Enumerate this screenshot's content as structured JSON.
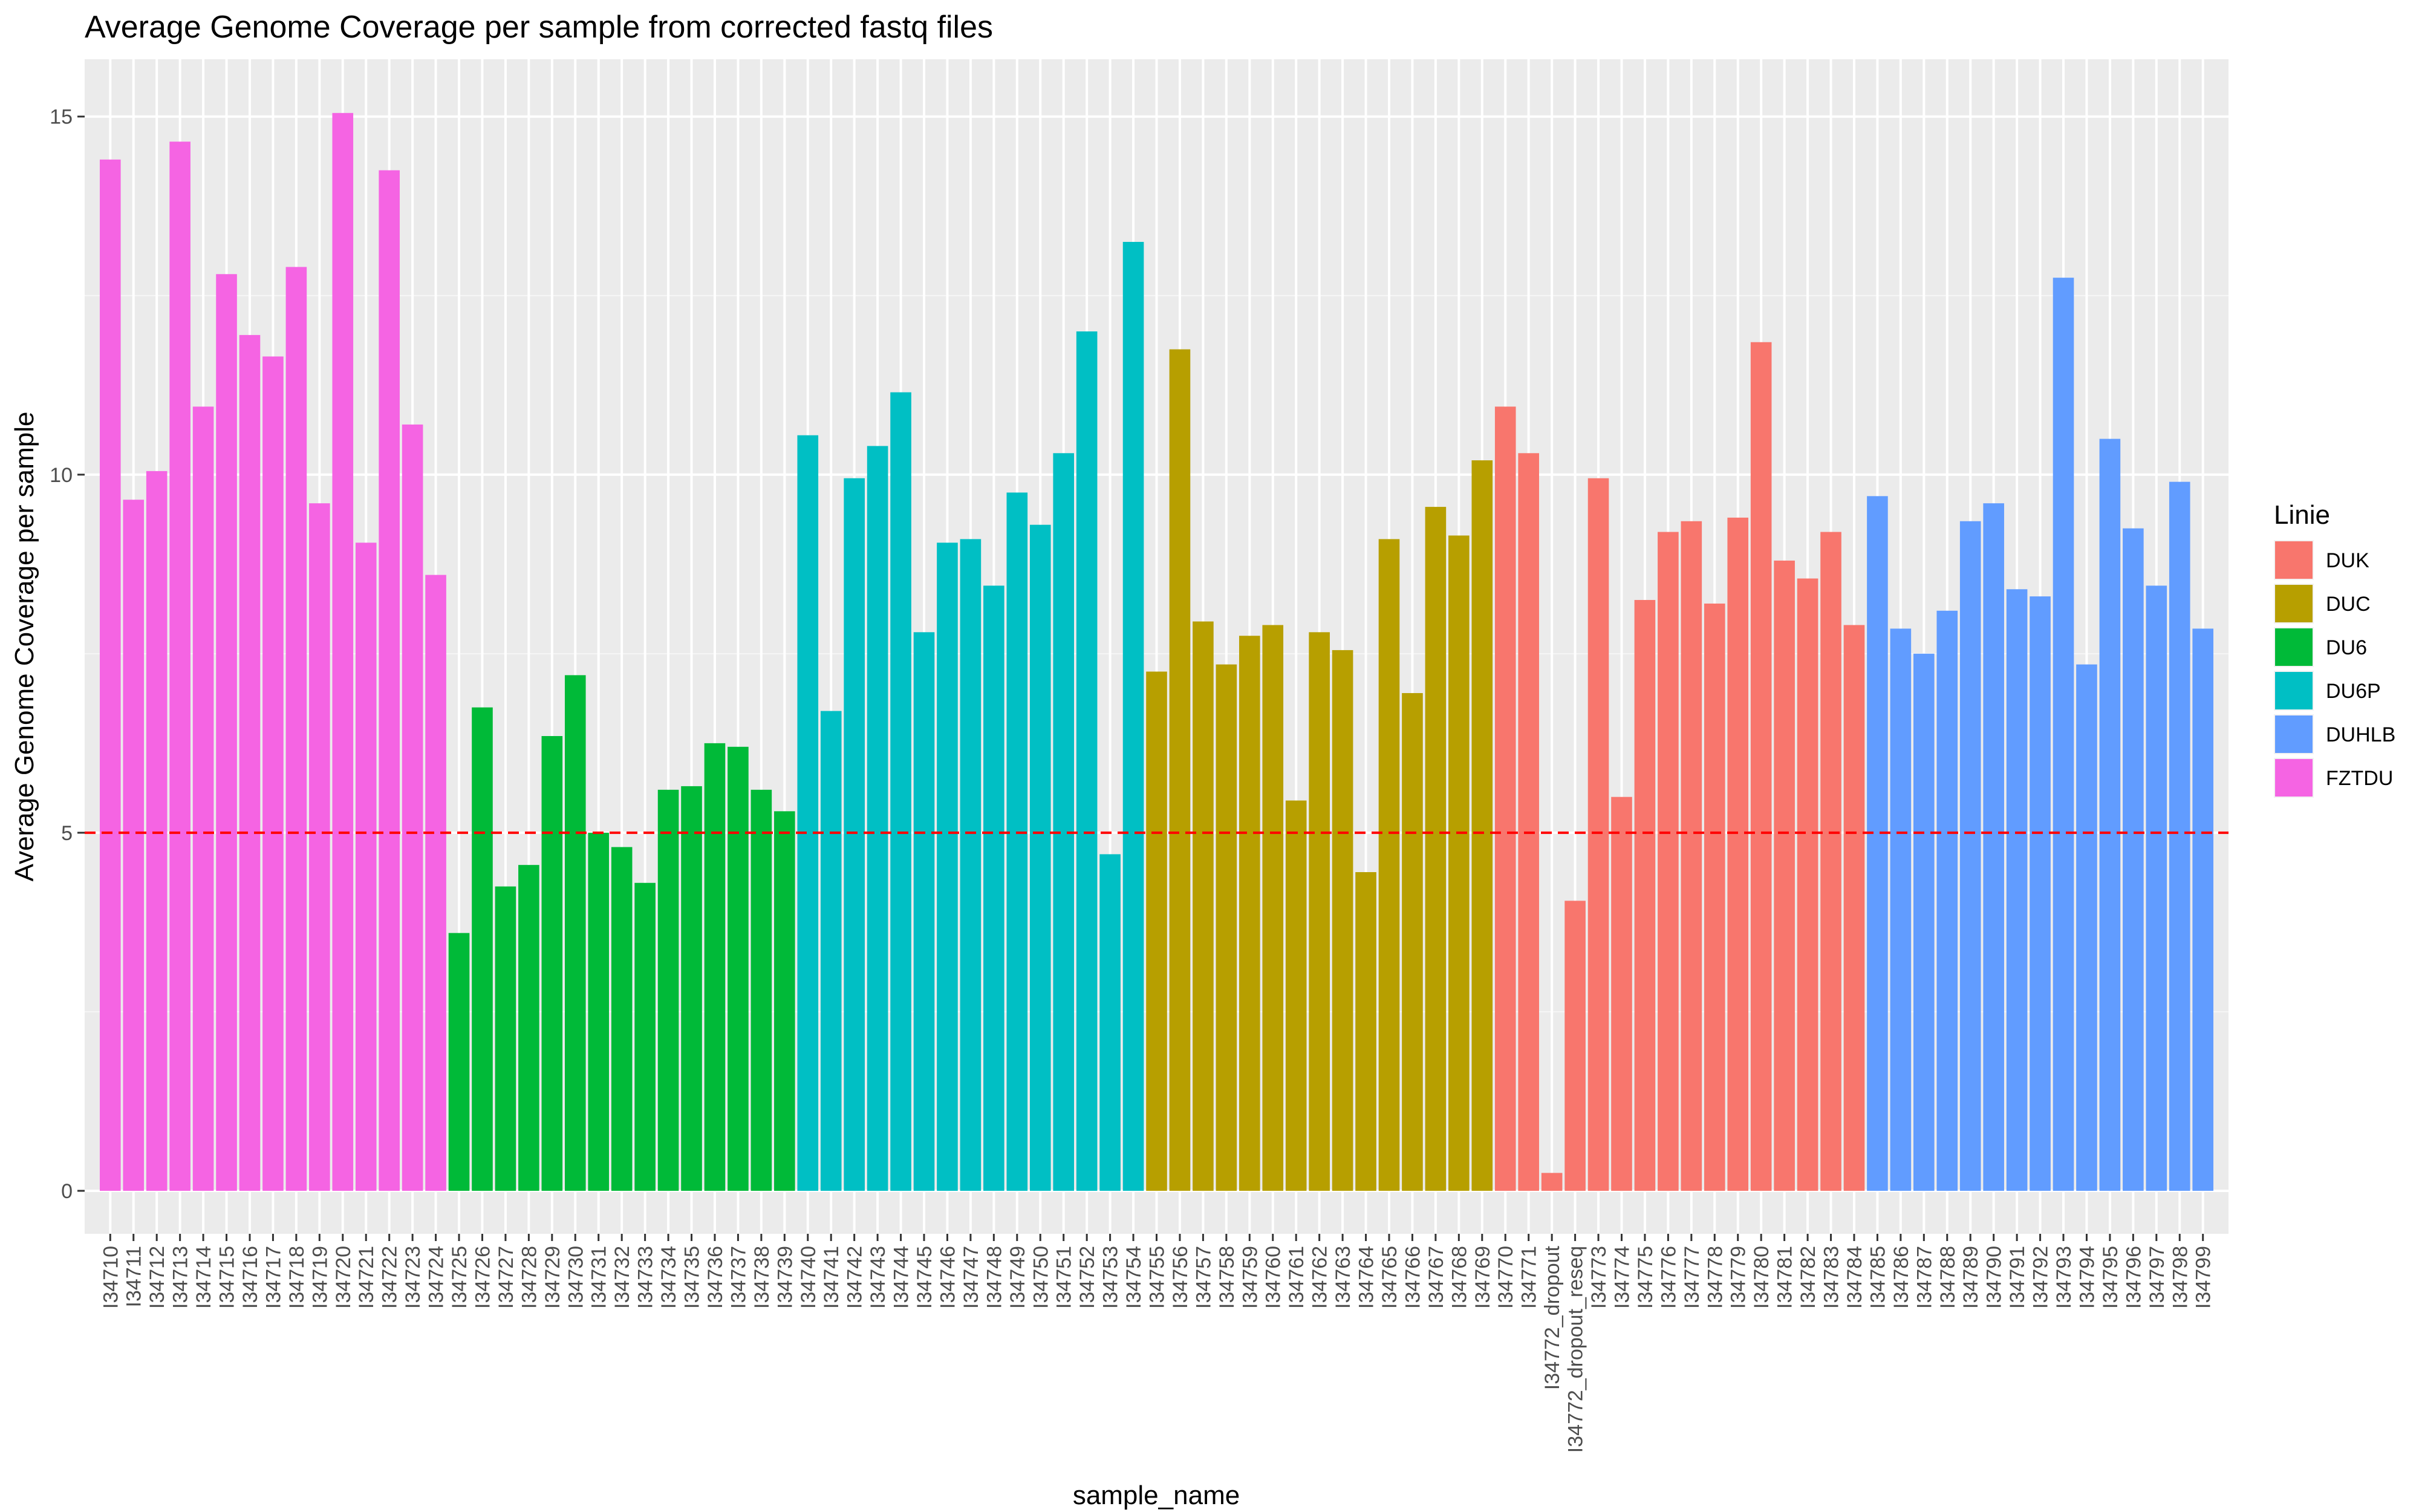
{
  "chart_data": {
    "type": "bar",
    "title": "Average Genome Coverage per sample from corrected fastq files",
    "xlabel": "sample_name",
    "ylabel": "Average Genome Coverage per sample",
    "ylim": [
      -0.6,
      15.8
    ],
    "yticks": [
      0,
      5,
      10,
      15
    ],
    "grid": true,
    "hline": {
      "value": 5,
      "color": "#ff0000",
      "style": "dashed"
    },
    "legend": {
      "title": "Linie",
      "position": "right",
      "items": [
        {
          "name": "DUK",
          "color": "#F8766D"
        },
        {
          "name": "DUC",
          "color": "#B79F00"
        },
        {
          "name": "DU6",
          "color": "#00BA38"
        },
        {
          "name": "DU6P",
          "color": "#00BFC4"
        },
        {
          "name": "DUHLB",
          "color": "#619CFF"
        },
        {
          "name": "FZTDU",
          "color": "#F564E3"
        }
      ]
    },
    "bars": [
      {
        "label": "I34710",
        "value": 14.4,
        "group": "FZTDU"
      },
      {
        "label": "I34711",
        "value": 9.65,
        "group": "FZTDU"
      },
      {
        "label": "I34712",
        "value": 10.05,
        "group": "FZTDU"
      },
      {
        "label": "I34713",
        "value": 14.65,
        "group": "FZTDU"
      },
      {
        "label": "I34714",
        "value": 10.95,
        "group": "FZTDU"
      },
      {
        "label": "I34715",
        "value": 12.8,
        "group": "FZTDU"
      },
      {
        "label": "I34716",
        "value": 11.95,
        "group": "FZTDU"
      },
      {
        "label": "I34717",
        "value": 11.65,
        "group": "FZTDU"
      },
      {
        "label": "I34718",
        "value": 12.9,
        "group": "FZTDU"
      },
      {
        "label": "I34719",
        "value": 9.6,
        "group": "FZTDU"
      },
      {
        "label": "I34720",
        "value": 15.05,
        "group": "FZTDU"
      },
      {
        "label": "I34721",
        "value": 9.05,
        "group": "FZTDU"
      },
      {
        "label": "I34722",
        "value": 14.25,
        "group": "FZTDU"
      },
      {
        "label": "I34723",
        "value": 10.7,
        "group": "FZTDU"
      },
      {
        "label": "I34724",
        "value": 8.6,
        "group": "FZTDU"
      },
      {
        "label": "I34725",
        "value": 3.6,
        "group": "DU6"
      },
      {
        "label": "I34726",
        "value": 6.75,
        "group": "DU6"
      },
      {
        "label": "I34727",
        "value": 4.25,
        "group": "DU6"
      },
      {
        "label": "I34728",
        "value": 4.55,
        "group": "DU6"
      },
      {
        "label": "I34729",
        "value": 6.35,
        "group": "DU6"
      },
      {
        "label": "I34730",
        "value": 7.2,
        "group": "DU6"
      },
      {
        "label": "I34731",
        "value": 5.0,
        "group": "DU6"
      },
      {
        "label": "I34732",
        "value": 4.8,
        "group": "DU6"
      },
      {
        "label": "I34733",
        "value": 4.3,
        "group": "DU6"
      },
      {
        "label": "I34734",
        "value": 5.6,
        "group": "DU6"
      },
      {
        "label": "I34735",
        "value": 5.65,
        "group": "DU6"
      },
      {
        "label": "I34736",
        "value": 6.25,
        "group": "DU6"
      },
      {
        "label": "I34737",
        "value": 6.2,
        "group": "DU6"
      },
      {
        "label": "I34738",
        "value": 5.6,
        "group": "DU6"
      },
      {
        "label": "I34739",
        "value": 5.3,
        "group": "DU6"
      },
      {
        "label": "I34740",
        "value": 10.55,
        "group": "DU6P"
      },
      {
        "label": "I34741",
        "value": 6.7,
        "group": "DU6P"
      },
      {
        "label": "I34742",
        "value": 9.95,
        "group": "DU6P"
      },
      {
        "label": "I34743",
        "value": 10.4,
        "group": "DU6P"
      },
      {
        "label": "I34744",
        "value": 11.15,
        "group": "DU6P"
      },
      {
        "label": "I34745",
        "value": 7.8,
        "group": "DU6P"
      },
      {
        "label": "I34746",
        "value": 9.05,
        "group": "DU6P"
      },
      {
        "label": "I34747",
        "value": 9.1,
        "group": "DU6P"
      },
      {
        "label": "I34748",
        "value": 8.45,
        "group": "DU6P"
      },
      {
        "label": "I34749",
        "value": 9.75,
        "group": "DU6P"
      },
      {
        "label": "I34750",
        "value": 9.3,
        "group": "DU6P"
      },
      {
        "label": "I34751",
        "value": 10.3,
        "group": "DU6P"
      },
      {
        "label": "I34752",
        "value": 12.0,
        "group": "DU6P"
      },
      {
        "label": "I34753",
        "value": 4.7,
        "group": "DU6P"
      },
      {
        "label": "I34754",
        "value": 13.25,
        "group": "DU6P"
      },
      {
        "label": "I34755",
        "value": 7.25,
        "group": "DUC"
      },
      {
        "label": "I34756",
        "value": 11.75,
        "group": "DUC"
      },
      {
        "label": "I34757",
        "value": 7.95,
        "group": "DUC"
      },
      {
        "label": "I34758",
        "value": 7.35,
        "group": "DUC"
      },
      {
        "label": "I34759",
        "value": 7.75,
        "group": "DUC"
      },
      {
        "label": "I34760",
        "value": 7.9,
        "group": "DUC"
      },
      {
        "label": "I34761",
        "value": 5.45,
        "group": "DUC"
      },
      {
        "label": "I34762",
        "value": 7.8,
        "group": "DUC"
      },
      {
        "label": "I34763",
        "value": 7.55,
        "group": "DUC"
      },
      {
        "label": "I34764",
        "value": 4.45,
        "group": "DUC"
      },
      {
        "label": "I34765",
        "value": 9.1,
        "group": "DUC"
      },
      {
        "label": "I34766",
        "value": 6.95,
        "group": "DUC"
      },
      {
        "label": "I34767",
        "value": 9.55,
        "group": "DUC"
      },
      {
        "label": "I34768",
        "value": 9.15,
        "group": "DUC"
      },
      {
        "label": "I34769",
        "value": 10.2,
        "group": "DUC"
      },
      {
        "label": "I34770",
        "value": 10.95,
        "group": "DUK"
      },
      {
        "label": "I34771",
        "value": 10.3,
        "group": "DUK"
      },
      {
        "label": "I34772_dropout",
        "value": 0.25,
        "group": "DUK"
      },
      {
        "label": "I34772_dropout_reseq",
        "value": 4.05,
        "group": "DUK"
      },
      {
        "label": "I34773",
        "value": 9.95,
        "group": "DUK"
      },
      {
        "label": "I34774",
        "value": 5.5,
        "group": "DUK"
      },
      {
        "label": "I34775",
        "value": 8.25,
        "group": "DUK"
      },
      {
        "label": "I34776",
        "value": 9.2,
        "group": "DUK"
      },
      {
        "label": "I34777",
        "value": 9.35,
        "group": "DUK"
      },
      {
        "label": "I34778",
        "value": 8.2,
        "group": "DUK"
      },
      {
        "label": "I34779",
        "value": 9.4,
        "group": "DUK"
      },
      {
        "label": "I34780",
        "value": 11.85,
        "group": "DUK"
      },
      {
        "label": "I34781",
        "value": 8.8,
        "group": "DUK"
      },
      {
        "label": "I34782",
        "value": 8.55,
        "group": "DUK"
      },
      {
        "label": "I34783",
        "value": 9.2,
        "group": "DUK"
      },
      {
        "label": "I34784",
        "value": 7.9,
        "group": "DUK"
      },
      {
        "label": "I34785",
        "value": 9.7,
        "group": "DUHLB"
      },
      {
        "label": "I34786",
        "value": 7.85,
        "group": "DUHLB"
      },
      {
        "label": "I34787",
        "value": 7.5,
        "group": "DUHLB"
      },
      {
        "label": "I34788",
        "value": 8.1,
        "group": "DUHLB"
      },
      {
        "label": "I34789",
        "value": 9.35,
        "group": "DUHLB"
      },
      {
        "label": "I34790",
        "value": 9.6,
        "group": "DUHLB"
      },
      {
        "label": "I34791",
        "value": 8.4,
        "group": "DUHLB"
      },
      {
        "label": "I34792",
        "value": 8.3,
        "group": "DUHLB"
      },
      {
        "label": "I34793",
        "value": 12.75,
        "group": "DUHLB"
      },
      {
        "label": "I34794",
        "value": 7.35,
        "group": "DUHLB"
      },
      {
        "label": "I34795",
        "value": 10.5,
        "group": "DUHLB"
      },
      {
        "label": "I34796",
        "value": 9.25,
        "group": "DUHLB"
      },
      {
        "label": "I34797",
        "value": 8.45,
        "group": "DUHLB"
      },
      {
        "label": "I34798",
        "value": 9.9,
        "group": "DUHLB"
      },
      {
        "label": "I34799",
        "value": 7.85,
        "group": "DUHLB"
      }
    ]
  }
}
